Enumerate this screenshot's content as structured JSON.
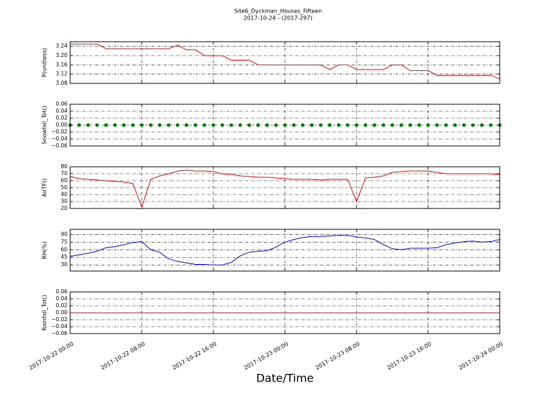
{
  "chart_data": [
    {
      "type": "line",
      "title": "Site6_Dyckman_Houses_Fifteen",
      "subtitle": "2017-10-24 - (2017-297)",
      "ylabel": "P(unitless)",
      "grid": true,
      "xlim": [
        "2017-10-22 00:00",
        "2017-10-24 00:00"
      ],
      "xticks": [
        "2017-10-22 00:00",
        "2017-10-22 08:00",
        "2017-10-22 16:00",
        "2017-10-23 00:00",
        "2017-10-23 08:00",
        "2017-10-23 16:00",
        "2017-10-24 00:00"
      ],
      "ylim": [
        3.08,
        3.26
      ],
      "yticks": [
        3.08,
        3.12,
        3.16,
        {
          "value": 3.2,
          "label": "3.20"
        },
        3.24
      ],
      "x": [
        "2017-10-22 00:00",
        "2017-10-22 01:00",
        "2017-10-22 02:00",
        "2017-10-22 03:00",
        "2017-10-22 04:00",
        "2017-10-22 05:00",
        "2017-10-22 06:00",
        "2017-10-22 07:00",
        "2017-10-22 08:00",
        "2017-10-22 09:00",
        "2017-10-22 10:00",
        "2017-10-22 11:00",
        "2017-10-22 12:00",
        "2017-10-22 13:00",
        "2017-10-22 14:00",
        "2017-10-22 15:00",
        "2017-10-22 16:00",
        "2017-10-22 17:00",
        "2017-10-22 18:00",
        "2017-10-22 19:00",
        "2017-10-22 20:00",
        "2017-10-22 21:00",
        "2017-10-22 22:00",
        "2017-10-22 23:00",
        "2017-10-23 00:00",
        "2017-10-23 01:00",
        "2017-10-23 02:00",
        "2017-10-23 03:00",
        "2017-10-23 04:00",
        "2017-10-23 05:00",
        "2017-10-23 06:00",
        "2017-10-23 07:00",
        "2017-10-23 08:00",
        "2017-10-23 09:00",
        "2017-10-23 10:00",
        "2017-10-23 11:00",
        "2017-10-23 12:00",
        "2017-10-23 13:00",
        "2017-10-23 14:00",
        "2017-10-23 15:00",
        "2017-10-23 16:00",
        "2017-10-23 17:00",
        "2017-10-23 18:00",
        "2017-10-23 19:00",
        "2017-10-23 20:00",
        "2017-10-23 21:00",
        "2017-10-23 22:00",
        "2017-10-23 23:00",
        "2017-10-24 00:00"
      ],
      "series": [
        {
          "color": "#ff0000",
          "values": [
            3.25,
            3.25,
            3.25,
            3.25,
            3.23,
            3.23,
            3.23,
            3.23,
            3.23,
            3.23,
            3.23,
            3.23,
            3.245,
            3.225,
            3.225,
            3.2,
            3.2,
            3.2,
            3.18,
            3.18,
            3.18,
            3.16,
            3.16,
            3.16,
            3.16,
            3.16,
            3.16,
            3.16,
            3.16,
            3.14,
            3.16,
            3.16,
            3.14,
            3.14,
            3.14,
            3.14,
            3.16,
            3.16,
            3.135,
            3.135,
            3.135,
            3.115,
            3.115,
            3.115,
            3.115,
            3.115,
            3.115,
            3.115,
            3.1
          ]
        }
      ]
    },
    {
      "type": "scatter",
      "ylabel": "Snowfall_Tot()",
      "grid": true,
      "xlim": [
        "2017-10-22 00:00",
        "2017-10-24 00:00"
      ],
      "xticks": [
        "2017-10-22 00:00",
        "2017-10-22 08:00",
        "2017-10-22 16:00",
        "2017-10-23 00:00",
        "2017-10-23 08:00",
        "2017-10-23 16:00",
        "2017-10-24 00:00"
      ],
      "ylim": [
        -0.06,
        0.06
      ],
      "yticks": [
        {
          "value": -0.06,
          "label": "−0.06"
        },
        {
          "value": -0.04,
          "label": "−0.04"
        },
        {
          "value": -0.02,
          "label": "−0.02"
        },
        {
          "value": 0,
          "label": "0.00"
        },
        0.02,
        0.04,
        0.06
      ],
      "x": [
        "2017-10-22 00:00",
        "2017-10-22 01:00",
        "2017-10-22 02:00",
        "2017-10-22 03:00",
        "2017-10-22 04:00",
        "2017-10-22 05:00",
        "2017-10-22 06:00",
        "2017-10-22 07:00",
        "2017-10-22 08:00",
        "2017-10-22 09:00",
        "2017-10-22 10:00",
        "2017-10-22 11:00",
        "2017-10-22 12:00",
        "2017-10-22 13:00",
        "2017-10-22 14:00",
        "2017-10-22 15:00",
        "2017-10-22 16:00",
        "2017-10-22 17:00",
        "2017-10-22 18:00",
        "2017-10-22 19:00",
        "2017-10-22 20:00",
        "2017-10-22 21:00",
        "2017-10-22 22:00",
        "2017-10-22 23:00",
        "2017-10-23 00:00",
        "2017-10-23 01:00",
        "2017-10-23 02:00",
        "2017-10-23 03:00",
        "2017-10-23 04:00",
        "2017-10-23 05:00",
        "2017-10-23 06:00",
        "2017-10-23 07:00",
        "2017-10-23 08:00",
        "2017-10-23 09:00",
        "2017-10-23 10:00",
        "2017-10-23 11:00",
        "2017-10-23 12:00",
        "2017-10-23 13:00",
        "2017-10-23 14:00",
        "2017-10-23 15:00",
        "2017-10-23 16:00",
        "2017-10-23 17:00",
        "2017-10-23 18:00",
        "2017-10-23 19:00",
        "2017-10-23 20:00",
        "2017-10-23 21:00",
        "2017-10-23 22:00",
        "2017-10-23 23:00",
        "2017-10-24 00:00"
      ],
      "series": [
        {
          "color": "#008000",
          "values": [
            0,
            0,
            0,
            0,
            0,
            0,
            0,
            0,
            0,
            0,
            0,
            0,
            0,
            0,
            0,
            0,
            0,
            0,
            0,
            0,
            0,
            0,
            0,
            0,
            0,
            0,
            0,
            0,
            0,
            0,
            0,
            0,
            0,
            0,
            0,
            0,
            0,
            0,
            0,
            0,
            0,
            0,
            0,
            0,
            0,
            0,
            0,
            0,
            0
          ]
        }
      ]
    },
    {
      "type": "line",
      "ylabel": "AirTF()",
      "grid": true,
      "xlim": [
        "2017-10-22 00:00",
        "2017-10-24 00:00"
      ],
      "xticks": [
        "2017-10-22 00:00",
        "2017-10-22 08:00",
        "2017-10-22 16:00",
        "2017-10-23 00:00",
        "2017-10-23 08:00",
        "2017-10-23 16:00",
        "2017-10-24 00:00"
      ],
      "ylim": [
        20,
        80
      ],
      "yticks": [
        20,
        30,
        40,
        50,
        60,
        70,
        80
      ],
      "x": [
        "2017-10-22 00:00",
        "2017-10-22 01:00",
        "2017-10-22 02:00",
        "2017-10-22 03:00",
        "2017-10-22 04:00",
        "2017-10-22 05:00",
        "2017-10-22 06:00",
        "2017-10-22 07:00",
        "2017-10-22 08:00",
        "2017-10-22 09:00",
        "2017-10-22 10:00",
        "2017-10-22 11:00",
        "2017-10-22 12:00",
        "2017-10-22 13:00",
        "2017-10-22 14:00",
        "2017-10-22 15:00",
        "2017-10-22 16:00",
        "2017-10-22 17:00",
        "2017-10-22 18:00",
        "2017-10-22 19:00",
        "2017-10-22 20:00",
        "2017-10-22 21:00",
        "2017-10-22 22:00",
        "2017-10-22 23:00",
        "2017-10-23 00:00",
        "2017-10-23 01:00",
        "2017-10-23 02:00",
        "2017-10-23 03:00",
        "2017-10-23 04:00",
        "2017-10-23 05:00",
        "2017-10-23 06:00",
        "2017-10-23 07:00",
        "2017-10-23 08:00",
        "2017-10-23 09:00",
        "2017-10-23 10:00",
        "2017-10-23 11:00",
        "2017-10-23 12:00",
        "2017-10-23 13:00",
        "2017-10-23 14:00",
        "2017-10-23 15:00",
        "2017-10-23 16:00",
        "2017-10-23 17:00",
        "2017-10-23 18:00",
        "2017-10-23 19:00",
        "2017-10-23 20:00",
        "2017-10-23 21:00",
        "2017-10-23 22:00",
        "2017-10-23 23:00",
        "2017-10-24 00:00"
      ],
      "series": [
        {
          "color": "#ff0000",
          "values": [
            66,
            63,
            62,
            61,
            60,
            59,
            58,
            56,
            22,
            62,
            67,
            70,
            74,
            75,
            74,
            74,
            73,
            70,
            69,
            67,
            66,
            65,
            65,
            64,
            63,
            62,
            62,
            62,
            61,
            62,
            62,
            62,
            30,
            64,
            65,
            67,
            72,
            73,
            74,
            74,
            74,
            72,
            70,
            70,
            70,
            70,
            70,
            70,
            69
          ]
        }
      ]
    },
    {
      "type": "line",
      "ylabel": "RH(%)",
      "grid": true,
      "xlim": [
        "2017-10-22 00:00",
        "2017-10-24 00:00"
      ],
      "xticks": [
        "2017-10-22 00:00",
        "2017-10-22 08:00",
        "2017-10-22 16:00",
        "2017-10-23 00:00",
        "2017-10-23 08:00",
        "2017-10-23 16:00",
        "2017-10-24 00:00"
      ],
      "ylim": [
        18,
        100
      ],
      "yticks": [
        30,
        45,
        60,
        75,
        90
      ],
      "x": [
        "2017-10-22 00:00",
        "2017-10-22 01:00",
        "2017-10-22 02:00",
        "2017-10-22 03:00",
        "2017-10-22 04:00",
        "2017-10-22 05:00",
        "2017-10-22 06:00",
        "2017-10-22 07:00",
        "2017-10-22 08:00",
        "2017-10-22 09:00",
        "2017-10-22 10:00",
        "2017-10-22 11:00",
        "2017-10-22 12:00",
        "2017-10-22 13:00",
        "2017-10-22 14:00",
        "2017-10-22 15:00",
        "2017-10-22 16:00",
        "2017-10-22 17:00",
        "2017-10-22 18:00",
        "2017-10-22 19:00",
        "2017-10-22 20:00",
        "2017-10-22 21:00",
        "2017-10-22 22:00",
        "2017-10-22 23:00",
        "2017-10-23 00:00",
        "2017-10-23 01:00",
        "2017-10-23 02:00",
        "2017-10-23 03:00",
        "2017-10-23 04:00",
        "2017-10-23 05:00",
        "2017-10-23 06:00",
        "2017-10-23 07:00",
        "2017-10-23 08:00",
        "2017-10-23 09:00",
        "2017-10-23 10:00",
        "2017-10-23 11:00",
        "2017-10-23 12:00",
        "2017-10-23 13:00",
        "2017-10-23 14:00",
        "2017-10-23 15:00",
        "2017-10-23 16:00",
        "2017-10-23 17:00",
        "2017-10-23 18:00",
        "2017-10-23 19:00",
        "2017-10-23 20:00",
        "2017-10-23 21:00",
        "2017-10-23 22:00",
        "2017-10-23 23:00",
        "2017-10-24 00:00"
      ],
      "series": [
        {
          "color": "#0000ff",
          "values": [
            47,
            50,
            53,
            57,
            64,
            66,
            70,
            74,
            76,
            60,
            55,
            42,
            37,
            34,
            31,
            31,
            30,
            30,
            35,
            48,
            55,
            57,
            58,
            65,
            75,
            80,
            84,
            86,
            86,
            87,
            88,
            88,
            85,
            83,
            80,
            70,
            62,
            60,
            63,
            63,
            63,
            64,
            70,
            73,
            76,
            77,
            75,
            76,
            80
          ]
        }
      ]
    },
    {
      "type": "line",
      "ylabel": "Rainfall_Tot()",
      "xlabel": "Date/Time",
      "grid": true,
      "xticklabels": true,
      "xlim": [
        "2017-10-22 00:00",
        "2017-10-24 00:00"
      ],
      "xticks": [
        "2017-10-22 00:00",
        "2017-10-22 08:00",
        "2017-10-22 16:00",
        "2017-10-23 00:00",
        "2017-10-23 08:00",
        "2017-10-23 16:00",
        "2017-10-24 00:00"
      ],
      "ylim": [
        -0.06,
        0.06
      ],
      "yticks": [
        {
          "value": -0.06,
          "label": "−0.06"
        },
        {
          "value": -0.04,
          "label": "−0.04"
        },
        {
          "value": -0.02,
          "label": "−0.02"
        },
        {
          "value": 0,
          "label": "0.00"
        },
        0.02,
        0.04,
        0.06
      ],
      "x": [
        "2017-10-22 00:00",
        "2017-10-22 01:00",
        "2017-10-22 02:00",
        "2017-10-22 03:00",
        "2017-10-22 04:00",
        "2017-10-22 05:00",
        "2017-10-22 06:00",
        "2017-10-22 07:00",
        "2017-10-22 08:00",
        "2017-10-22 09:00",
        "2017-10-22 10:00",
        "2017-10-22 11:00",
        "2017-10-22 12:00",
        "2017-10-22 13:00",
        "2017-10-22 14:00",
        "2017-10-22 15:00",
        "2017-10-22 16:00",
        "2017-10-22 17:00",
        "2017-10-22 18:00",
        "2017-10-22 19:00",
        "2017-10-22 20:00",
        "2017-10-22 21:00",
        "2017-10-22 22:00",
        "2017-10-22 23:00",
        "2017-10-23 00:00",
        "2017-10-23 01:00",
        "2017-10-23 02:00",
        "2017-10-23 03:00",
        "2017-10-23 04:00",
        "2017-10-23 05:00",
        "2017-10-23 06:00",
        "2017-10-23 07:00",
        "2017-10-23 08:00",
        "2017-10-23 09:00",
        "2017-10-23 10:00",
        "2017-10-23 11:00",
        "2017-10-23 12:00",
        "2017-10-23 13:00",
        "2017-10-23 14:00",
        "2017-10-23 15:00",
        "2017-10-23 16:00",
        "2017-10-23 17:00",
        "2017-10-23 18:00",
        "2017-10-23 19:00",
        "2017-10-23 20:00",
        "2017-10-23 21:00",
        "2017-10-23 22:00",
        "2017-10-23 23:00",
        "2017-10-24 00:00"
      ],
      "series": [
        {
          "color": "#ff0000",
          "values": [
            0,
            0,
            0,
            0,
            0,
            0,
            0,
            0,
            0,
            0,
            0,
            0,
            0,
            0,
            0,
            0,
            0,
            0,
            0,
            0,
            0,
            0,
            0,
            0,
            0,
            0,
            0,
            0,
            0,
            0,
            0,
            0,
            0,
            0,
            0,
            0,
            0,
            0,
            0,
            0,
            0,
            0,
            0,
            0,
            0,
            0,
            0,
            0,
            0
          ]
        }
      ]
    }
  ]
}
